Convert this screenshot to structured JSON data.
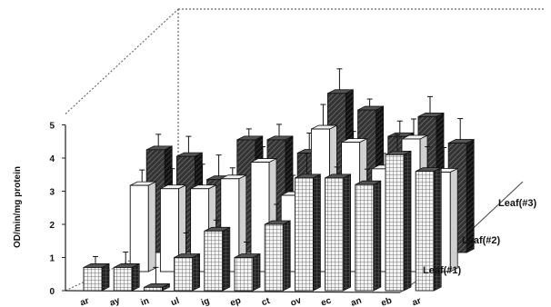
{
  "chart_data": {
    "type": "bar",
    "subtype": "3d-grouped-bar",
    "title": "",
    "ylabel": "OD/min/mg protein",
    "xlabel": "",
    "ylim": [
      0,
      5
    ],
    "yticks": [
      "0",
      "1",
      "2",
      "3",
      "4",
      "5"
    ],
    "categories": [
      "Mar",
      "May",
      "Jun",
      "Jul",
      "Aug",
      "Sep",
      "Oct",
      "Nov",
      "Dec",
      "Jan",
      "Feb",
      "Mar"
    ],
    "category_labels_visible": [
      "ar",
      "ay",
      "in",
      "ul",
      "ig",
      "ep",
      "ct",
      "ov",
      "ec",
      "an",
      "eb",
      "ar"
    ],
    "series": [
      {
        "name": "Leaf(#1)",
        "pattern": "grid",
        "values": [
          0.7,
          0.7,
          0.1,
          1.0,
          1.8,
          1.0,
          2.0,
          3.4,
          3.4,
          3.2,
          4.1,
          3.6
        ]
      },
      {
        "name": "Leaf(#2)",
        "pattern": "white",
        "values": [
          null,
          2.6,
          2.5,
          2.5,
          2.8,
          3.3,
          2.3,
          4.3,
          3.9,
          3.1,
          4.0,
          3.0
        ]
      },
      {
        "name": "Leaf(#3)",
        "pattern": "hatched",
        "values": [
          null,
          3.1,
          2.9,
          2.2,
          3.4,
          3.4,
          3.0,
          4.8,
          4.3,
          3.5,
          4.1,
          3.3
        ]
      }
    ],
    "error_bars": true,
    "grid": false,
    "legend_placement": "right, along depth axis"
  }
}
